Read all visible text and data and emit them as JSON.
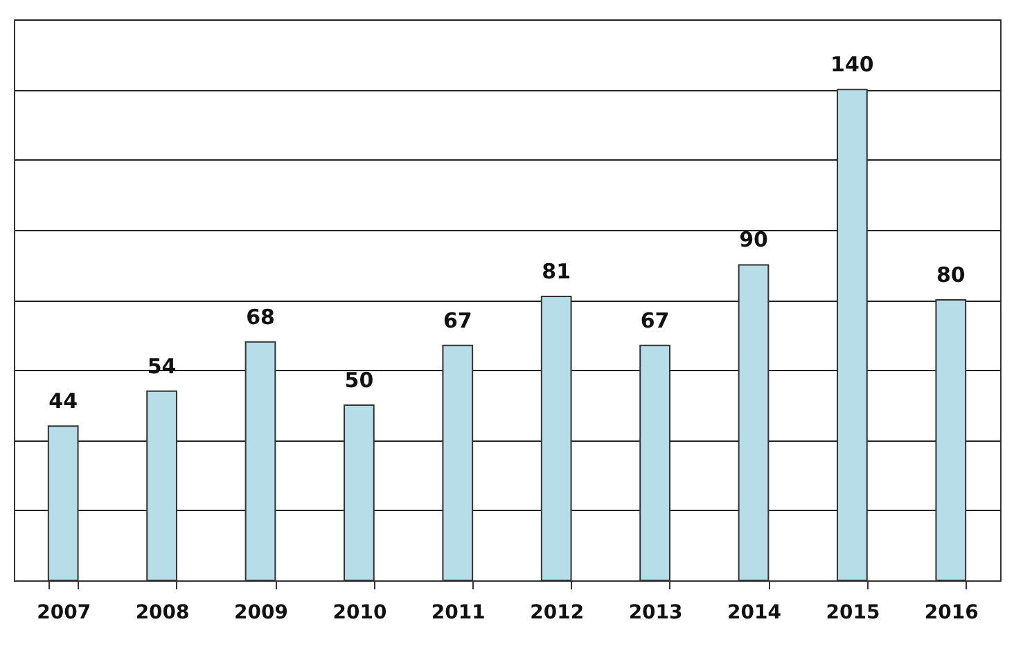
{
  "chart_data": {
    "type": "bar",
    "categories": [
      "2007",
      "2008",
      "2009",
      "2010",
      "2011",
      "2012",
      "2013",
      "2014",
      "2015",
      "2016"
    ],
    "values": [
      44,
      54,
      68,
      50,
      67,
      81,
      67,
      90,
      140,
      80
    ],
    "color": "#b7dde8",
    "ylim": [
      0,
      160
    ],
    "yticks": [
      {
        "value": 0,
        "label": null
      },
      {
        "value": 20,
        "label": null
      },
      {
        "value": 40,
        "label": null
      },
      {
        "value": 60,
        "label": null
      },
      {
        "value": 80,
        "label": null
      },
      {
        "value": 100,
        "label": null
      },
      {
        "value": 120,
        "label": null
      },
      {
        "value": 140,
        "label": null
      },
      {
        "value": 160,
        "label": null
      }
    ],
    "grid": "y",
    "tick_labels": "x",
    "data_labels": true
  }
}
